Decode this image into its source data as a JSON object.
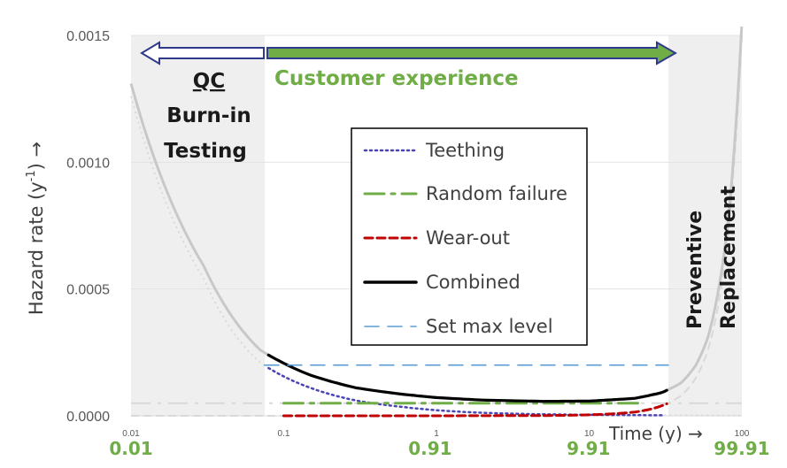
{
  "chart_data": {
    "type": "line",
    "xscale": "log",
    "xlim": [
      0.01,
      100
    ],
    "ylim": [
      0,
      0.0015
    ],
    "y_ticks": [
      "0.0000",
      "0.0005",
      "0.0010",
      "0.0015"
    ],
    "x_ticks": [
      "0.01",
      "0.1",
      "1",
      "10",
      "100"
    ],
    "x_ticks_green": [
      "0.01",
      "0.91",
      "9.91",
      "99.91"
    ],
    "ylabel": "Hazard rate (y-1) →",
    "ylabel_base": "Hazard rate (y",
    "ylabel_sup": "-1",
    "ylabel_end": ") →",
    "xlabel": "Time (y) →",
    "legend_placement": "center",
    "series": [
      {
        "name": "Teething",
        "style": "dotted",
        "color": "#4a45b5",
        "x": [
          0.01,
          0.03,
          0.07,
          0.15,
          0.3,
          0.6,
          1,
          2,
          5,
          10,
          30,
          100
        ],
        "y": [
          0.00126,
          0.00054,
          0.00021,
          0.00011,
          6e-05,
          3.5e-05,
          2.2e-05,
          1.2e-05,
          6e-06,
          4e-06,
          2e-06,
          1e-06
        ]
      },
      {
        "name": "Random failure",
        "style": "dashdot",
        "color": "#70ad47",
        "x": [
          0.01,
          100
        ],
        "y": [
          5e-05,
          5e-05
        ]
      },
      {
        "name": "Wear-out",
        "style": "dashed",
        "color": "#c00000",
        "x": [
          0.01,
          1,
          5,
          10,
          20,
          30,
          40,
          50,
          60,
          80,
          100
        ],
        "y": [
          0,
          0,
          1e-06,
          4e-06,
          1.5e-05,
          4e-05,
          8e-05,
          0.00015,
          0.00026,
          0.00068,
          0.0015
        ]
      },
      {
        "name": "Combined",
        "style": "solid",
        "color": "#000000",
        "x": [
          0.01,
          0.03,
          0.07,
          0.15,
          0.3,
          0.6,
          1,
          2,
          5,
          10,
          20,
          30,
          40,
          50,
          60,
          80,
          100
        ],
        "y": [
          0.00131,
          0.00059,
          0.00026,
          0.00016,
          0.00011,
          8.5e-05,
          7.2e-05,
          6.2e-05,
          5.7e-05,
          5.8e-05,
          6.9e-05,
          9.2e-05,
          0.00013,
          0.0002,
          0.00031,
          0.00073,
          0.00155
        ]
      },
      {
        "name": "Set max level",
        "style": "longdash",
        "color": "#5b9bd5",
        "x": [
          0.01,
          100
        ],
        "y": [
          0.0002,
          0.0002
        ]
      }
    ],
    "annotations": {
      "qc": "QC",
      "burn_in": "Burn-in",
      "testing": "Testing",
      "customer": "Customer experience",
      "preventive": "Preventive",
      "replacement": "Replacement"
    }
  }
}
